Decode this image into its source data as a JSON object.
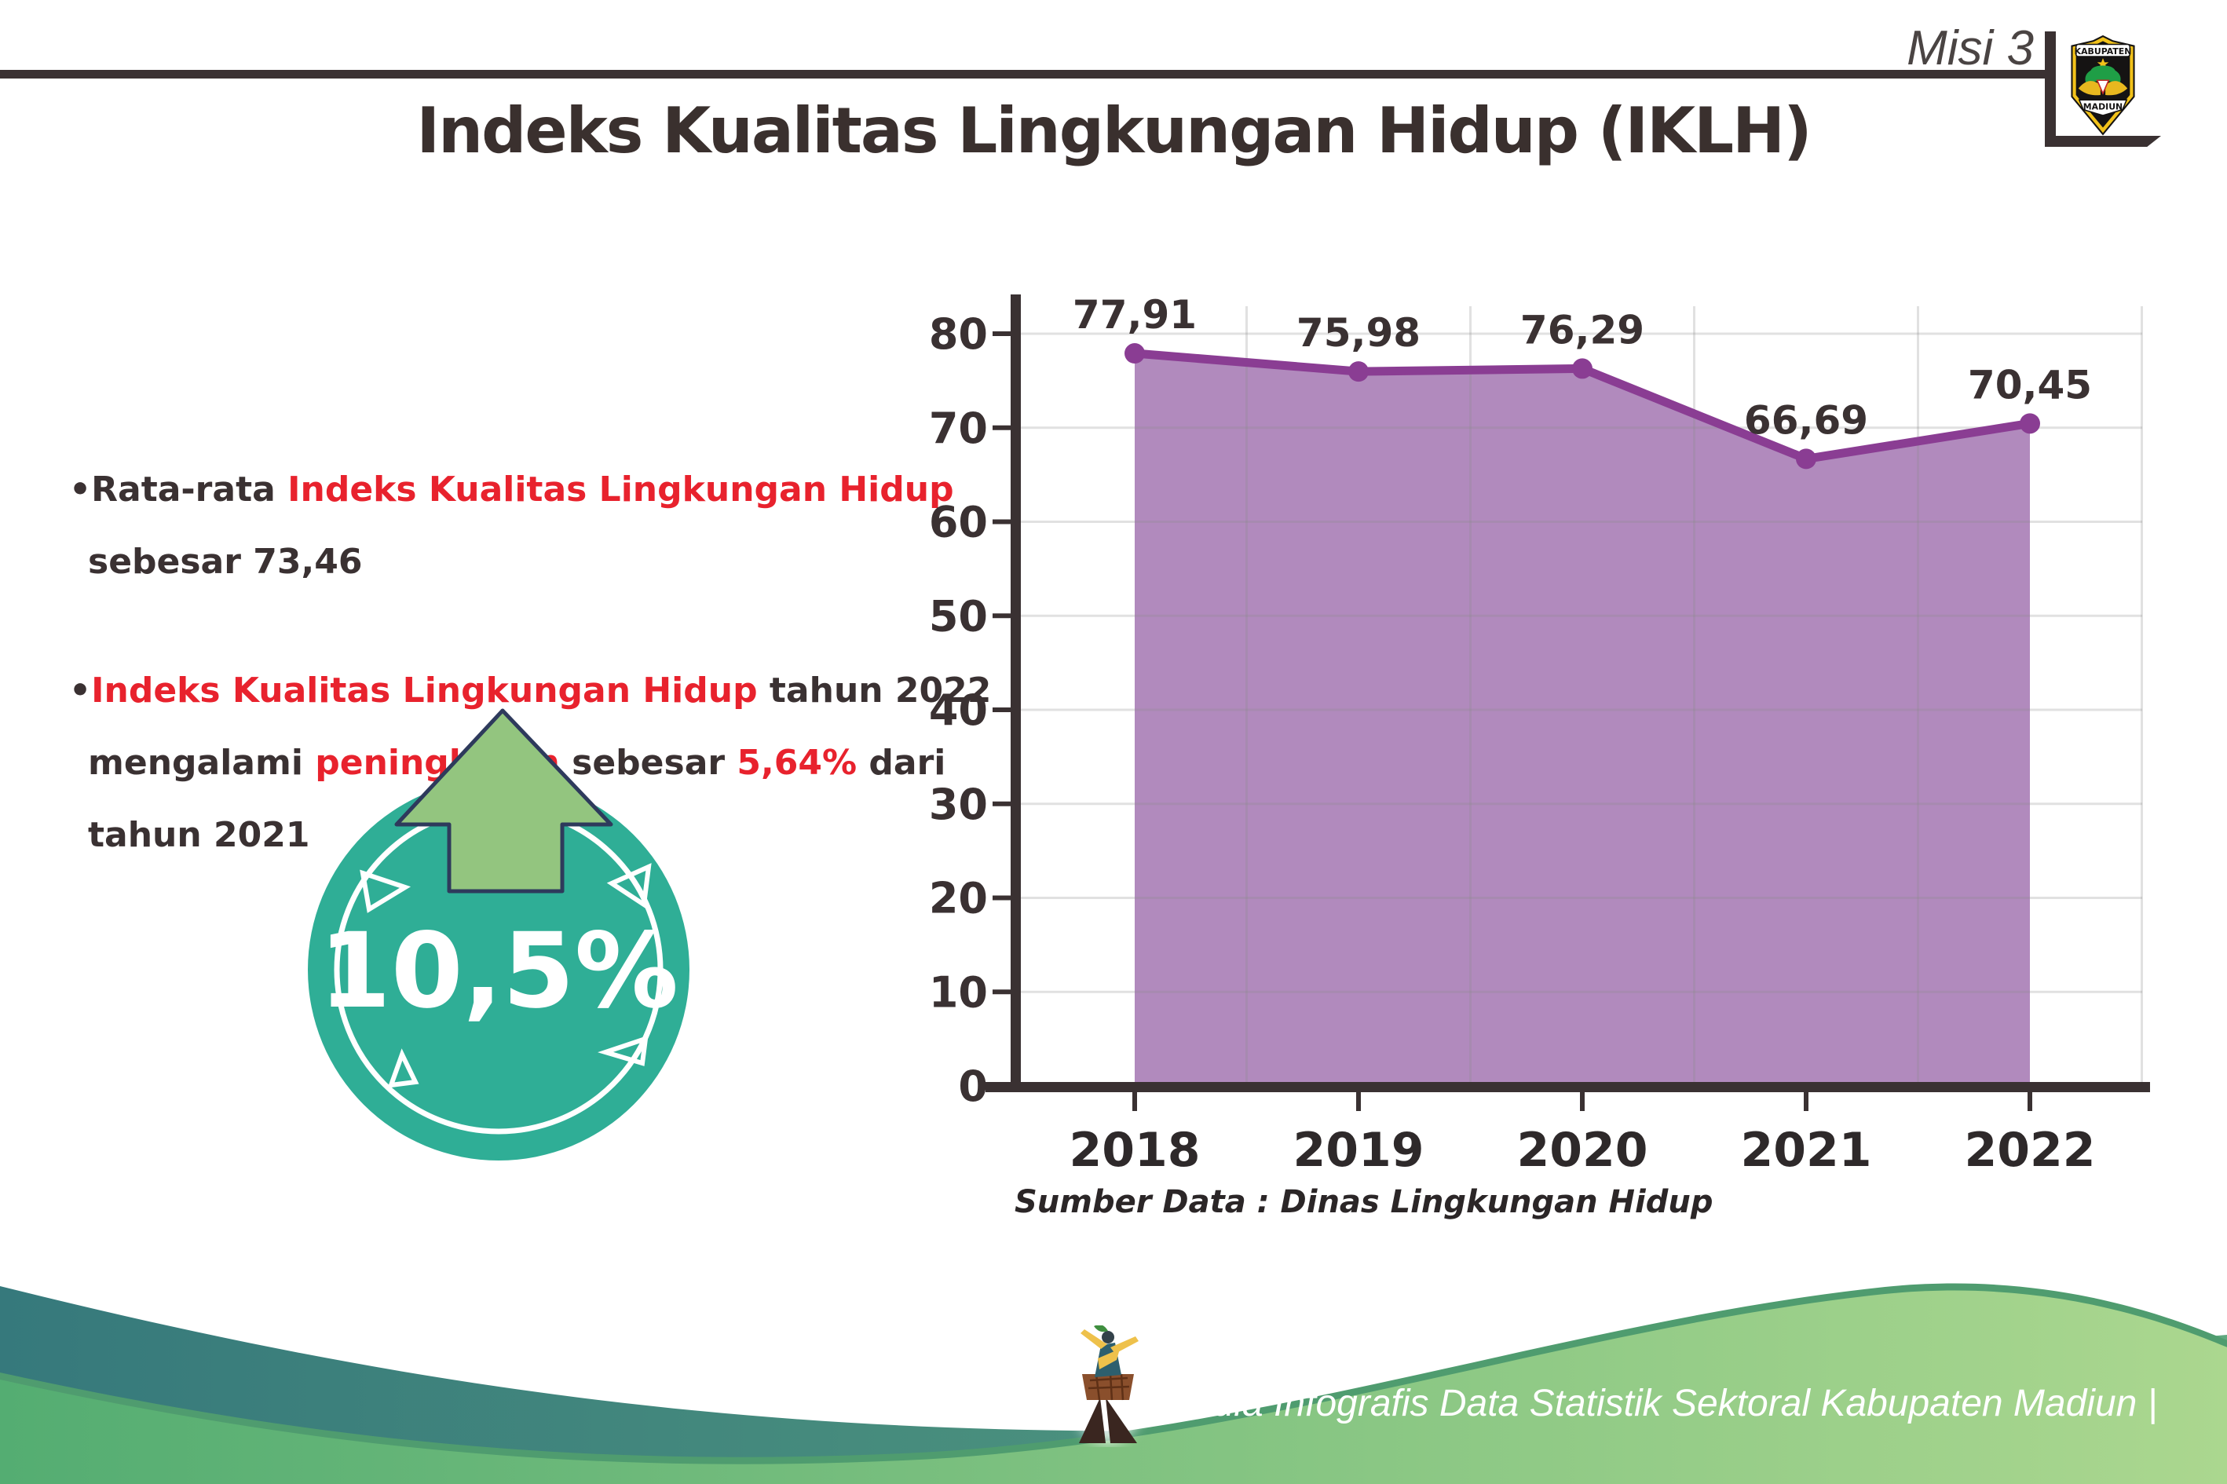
{
  "header": {
    "misi_label": "Misi 3",
    "title": "Indeks Kualitas Lingkungan Hidup (IKLH)"
  },
  "logo": {
    "top_text": "KABUPATEN",
    "bottom_text": "MADIUN"
  },
  "bullets": {
    "marker": "•",
    "items": [
      {
        "lines": [
          [
            {
              "t": "Rata-rata ",
              "c": "dark"
            },
            {
              "t": "Indeks Kualitas Lingkungan Hidup",
              "c": "red"
            }
          ],
          [
            {
              "t": "sebesar 73,46",
              "c": "dark"
            }
          ]
        ]
      },
      {
        "lines": [
          [
            {
              "t": "Indeks Kualitas Lingkungan Hidup",
              "c": "red"
            },
            {
              "t": " tahun 2022",
              "c": "dark"
            }
          ],
          [
            {
              "t": "mengalami ",
              "c": "dark"
            },
            {
              "t": "peningkatan",
              "c": "red"
            },
            {
              "t": " sebesar ",
              "c": "dark"
            },
            {
              "t": "5,64%",
              "c": "red"
            },
            {
              "t": " dari",
              "c": "dark"
            }
          ],
          [
            {
              "t": "tahun 2021",
              "c": "dark"
            }
          ]
        ]
      }
    ]
  },
  "badge": {
    "value": "10,5%"
  },
  "chart_data": {
    "type": "area",
    "title": "",
    "xlabel": "",
    "ylabel": "",
    "categories": [
      "2018",
      "2019",
      "2020",
      "2021",
      "2022"
    ],
    "series": [
      {
        "name": "IKLH",
        "values": [
          77.91,
          75.98,
          76.29,
          66.69,
          70.45
        ]
      }
    ],
    "point_labels": [
      "77,91",
      "75,98",
      "76,29",
      "66,69",
      "70,45"
    ],
    "ylim": [
      0,
      80
    ],
    "yticks": [
      0,
      10,
      20,
      30,
      40,
      50,
      60,
      70,
      80
    ],
    "grid": true,
    "legend_position": "none",
    "source_note": "Sumber Data : Dinas Lingkungan Hidup"
  },
  "footer": {
    "credit": "Media Infografis Data Statistik Sektoral Kabupaten Madiun |"
  },
  "colors": {
    "text_dark": "#3a3132",
    "accent_red": "#e8222d",
    "area_fill": "#b18abd",
    "line_purple": "#8a3d93",
    "gridline": "#8a8a8a",
    "circle_teal": "#2fae96",
    "arrow_green": "#93c57f",
    "arrow_outline": "#2e3a5c",
    "footer_teal_dark": "#36797c",
    "footer_teal_light": "#5fa87f",
    "footer_green_dark": "#54ad72",
    "footer_green_light": "#abd78f",
    "footer_green_edge": "#4f9c6f",
    "logo_yellow": "#f2c21a"
  }
}
